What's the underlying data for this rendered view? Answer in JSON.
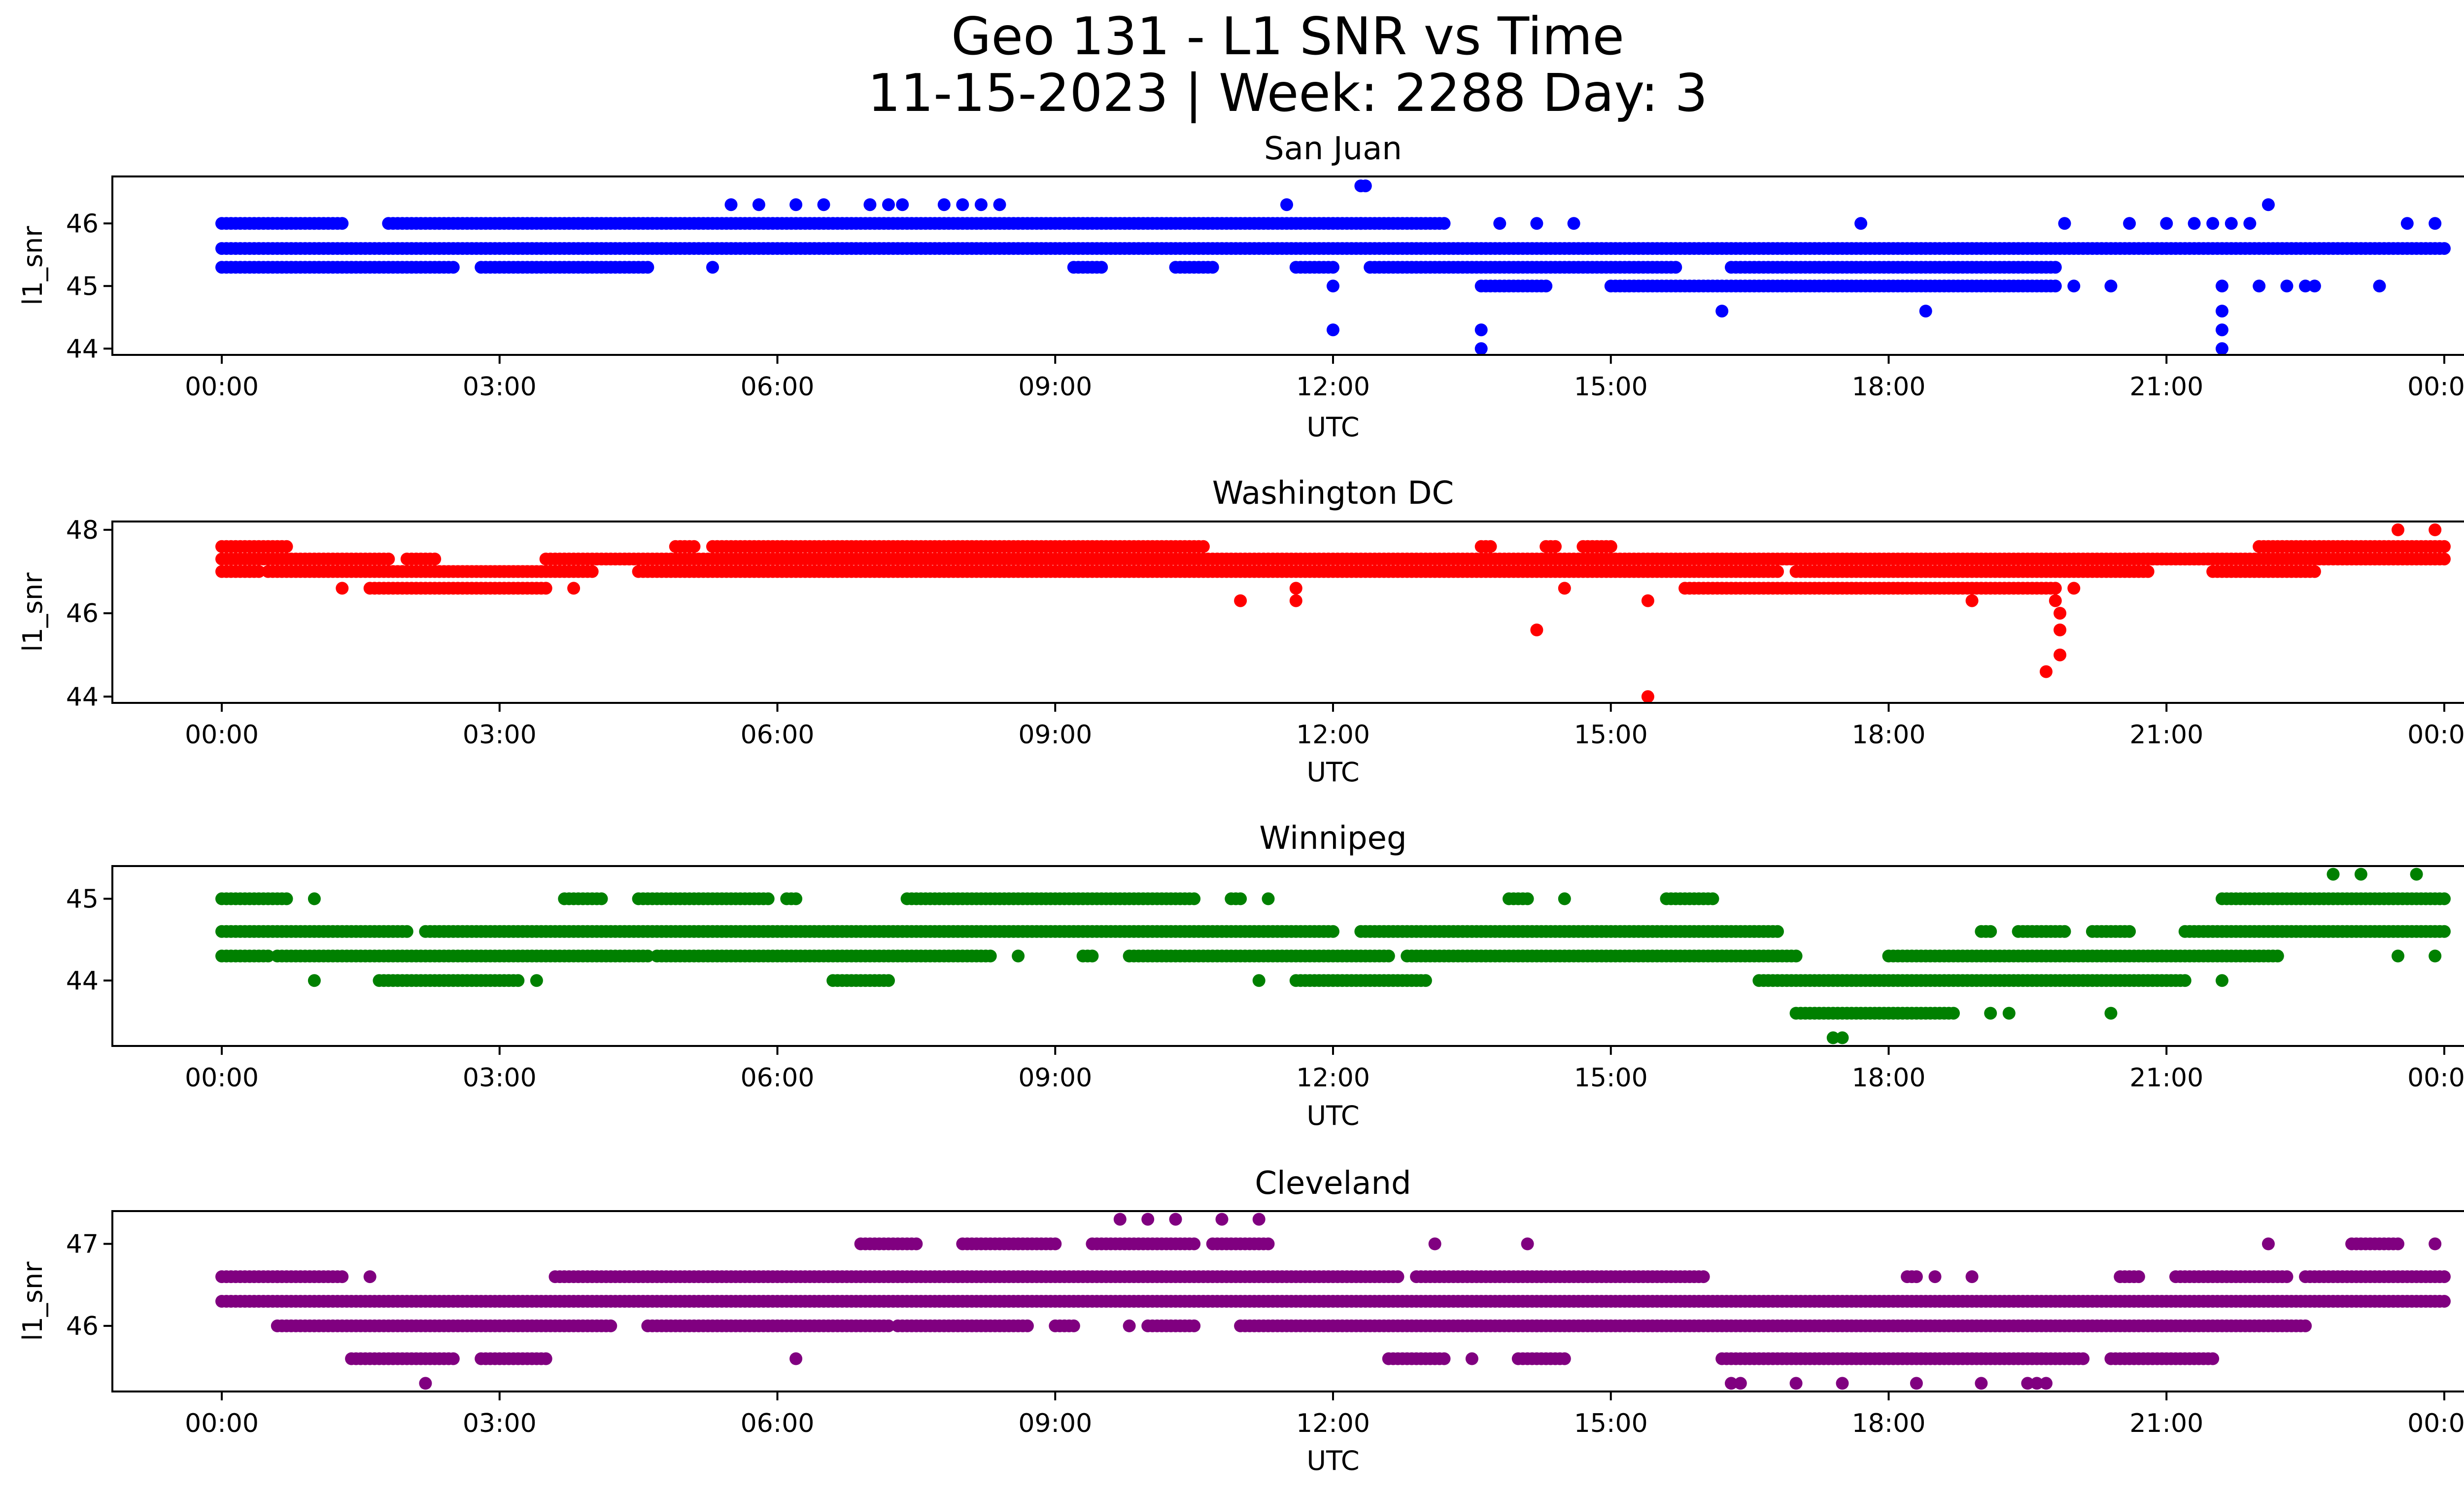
{
  "figure": {
    "title_line1": "Geo 131 - L1 SNR vs Time",
    "title_line2": "11-15-2023 | Week: 2288 Day: 3"
  },
  "chart_data": [
    {
      "type": "scatter",
      "title": "San Juan",
      "xlabel": "UTC",
      "ylabel": "l1_snr",
      "color": "#0000ff",
      "x_ticks": [
        "00:00",
        "03:00",
        "06:00",
        "09:00",
        "12:00",
        "15:00",
        "18:00",
        "21:00",
        "00:00"
      ],
      "x_tick_hours": [
        0,
        3,
        6,
        9,
        12,
        15,
        18,
        21,
        24
      ],
      "y_ticks": [
        44,
        45,
        46
      ],
      "ylim": [
        43.9,
        46.75
      ],
      "bands": [
        {
          "y": 46.0,
          "segments": [
            [
              0.0,
              1.3
            ],
            [
              1.8,
              12.3
            ],
            [
              12.3,
              13.2
            ]
          ]
        },
        {
          "y": 45.6,
          "segments": [
            [
              0.0,
              24.0
            ]
          ]
        },
        {
          "y": 45.3,
          "segments": [
            [
              0.0,
              2.5
            ],
            [
              2.8,
              4.6
            ],
            [
              5.3,
              5.3
            ],
            [
              9.2,
              9.5
            ],
            [
              10.3,
              10.7
            ],
            [
              11.6,
              12.0
            ],
            [
              12.4,
              15.7
            ],
            [
              16.3,
              19.8
            ]
          ]
        },
        {
          "y": 45.0,
          "segments": [
            [
              13.6,
              14.3
            ],
            [
              15.0,
              19.8
            ]
          ]
        }
      ],
      "points": [
        {
          "x": 5.5,
          "y": 46.3
        },
        {
          "x": 5.8,
          "y": 46.3
        },
        {
          "x": 6.2,
          "y": 46.3
        },
        {
          "x": 6.5,
          "y": 46.3
        },
        {
          "x": 7.0,
          "y": 46.3
        },
        {
          "x": 7.2,
          "y": 46.3
        },
        {
          "x": 7.35,
          "y": 46.3
        },
        {
          "x": 7.8,
          "y": 46.3
        },
        {
          "x": 8.0,
          "y": 46.3
        },
        {
          "x": 8.2,
          "y": 46.3
        },
        {
          "x": 8.4,
          "y": 46.3
        },
        {
          "x": 11.5,
          "y": 46.3
        },
        {
          "x": 12.3,
          "y": 46.6
        },
        {
          "x": 12.35,
          "y": 46.6
        },
        {
          "x": 22.1,
          "y": 46.3
        },
        {
          "x": 13.8,
          "y": 46.0
        },
        {
          "x": 14.2,
          "y": 46.0
        },
        {
          "x": 14.6,
          "y": 46.0
        },
        {
          "x": 17.7,
          "y": 46.0
        },
        {
          "x": 19.9,
          "y": 46.0
        },
        {
          "x": 20.6,
          "y": 46.0
        },
        {
          "x": 21.0,
          "y": 46.0
        },
        {
          "x": 21.3,
          "y": 46.0
        },
        {
          "x": 21.5,
          "y": 46.0
        },
        {
          "x": 21.7,
          "y": 46.0
        },
        {
          "x": 21.9,
          "y": 46.0
        },
        {
          "x": 23.6,
          "y": 46.0
        },
        {
          "x": 23.9,
          "y": 46.0
        },
        {
          "x": 12.0,
          "y": 45.0
        },
        {
          "x": 16.2,
          "y": 44.6
        },
        {
          "x": 18.4,
          "y": 44.6
        },
        {
          "x": 21.6,
          "y": 44.6
        },
        {
          "x": 12.0,
          "y": 44.3
        },
        {
          "x": 13.6,
          "y": 44.3
        },
        {
          "x": 21.6,
          "y": 44.3
        },
        {
          "x": 13.6,
          "y": 44.0
        },
        {
          "x": 21.6,
          "y": 44.0
        },
        {
          "x": 20.0,
          "y": 45.0
        },
        {
          "x": 20.4,
          "y": 45.0
        },
        {
          "x": 21.6,
          "y": 45.0
        },
        {
          "x": 22.0,
          "y": 45.0
        },
        {
          "x": 22.3,
          "y": 45.0
        },
        {
          "x": 22.5,
          "y": 45.0
        },
        {
          "x": 22.6,
          "y": 45.0
        },
        {
          "x": 23.3,
          "y": 45.0
        }
      ]
    },
    {
      "type": "scatter",
      "title": "Washington DC",
      "xlabel": "UTC",
      "ylabel": "l1_snr",
      "color": "#ff0000",
      "x_ticks": [
        "00:00",
        "03:00",
        "06:00",
        "09:00",
        "12:00",
        "15:00",
        "18:00",
        "21:00",
        "00:00"
      ],
      "x_tick_hours": [
        0,
        3,
        6,
        9,
        12,
        15,
        18,
        21,
        24
      ],
      "y_ticks": [
        44,
        46,
        48
      ],
      "ylim": [
        43.85,
        48.2
      ],
      "bands": [
        {
          "y": 47.6,
          "segments": [
            [
              0.0,
              0.7
            ],
            [
              4.9,
              5.1
            ],
            [
              5.3,
              10.6
            ],
            [
              13.6,
              13.7
            ],
            [
              14.3,
              14.4
            ],
            [
              14.7,
              15.0
            ],
            [
              22.0,
              24.0
            ]
          ]
        },
        {
          "y": 47.3,
          "segments": [
            [
              0.0,
              1.8
            ],
            [
              2.0,
              2.3
            ],
            [
              3.5,
              24.0
            ]
          ]
        },
        {
          "y": 47.0,
          "segments": [
            [
              0.0,
              0.4
            ],
            [
              0.5,
              4.0
            ],
            [
              4.5,
              16.8
            ],
            [
              17.0,
              20.8
            ],
            [
              21.5,
              22.6
            ]
          ]
        },
        {
          "y": 46.6,
          "segments": [
            [
              1.6,
              3.5
            ],
            [
              15.8,
              19.8
            ]
          ]
        }
      ],
      "points": [
        {
          "x": 1.3,
          "y": 46.6
        },
        {
          "x": 3.8,
          "y": 46.6
        },
        {
          "x": 11.0,
          "y": 46.3
        },
        {
          "x": 11.6,
          "y": 46.3
        },
        {
          "x": 11.6,
          "y": 46.6
        },
        {
          "x": 14.5,
          "y": 46.6
        },
        {
          "x": 15.4,
          "y": 46.3
        },
        {
          "x": 18.9,
          "y": 46.3
        },
        {
          "x": 19.8,
          "y": 46.3
        },
        {
          "x": 19.85,
          "y": 46.0
        },
        {
          "x": 19.85,
          "y": 45.6
        },
        {
          "x": 19.85,
          "y": 45.0
        },
        {
          "x": 19.7,
          "y": 44.6
        },
        {
          "x": 14.2,
          "y": 45.6
        },
        {
          "x": 15.4,
          "y": 44.0
        },
        {
          "x": 23.5,
          "y": 48.0
        },
        {
          "x": 23.9,
          "y": 48.0
        },
        {
          "x": 20.0,
          "y": 46.6
        }
      ]
    },
    {
      "type": "scatter",
      "title": "Winnipeg",
      "xlabel": "UTC",
      "ylabel": "",
      "color": "#008000",
      "x_ticks": [
        "00:00",
        "03:00",
        "06:00",
        "09:00",
        "12:00",
        "15:00",
        "18:00",
        "21:00",
        "00:00"
      ],
      "x_tick_hours": [
        0,
        3,
        6,
        9,
        12,
        15,
        18,
        21,
        24
      ],
      "y_ticks": [
        44,
        45
      ],
      "ylim": [
        43.2,
        45.4
      ],
      "bands": [
        {
          "y": 45.0,
          "segments": [
            [
              0.0,
              0.7
            ],
            [
              3.7,
              4.1
            ],
            [
              4.5,
              5.9
            ],
            [
              6.1,
              6.2
            ],
            [
              7.4,
              10.5
            ],
            [
              10.9,
              11.0
            ],
            [
              13.9,
              14.1
            ],
            [
              15.6,
              16.1
            ],
            [
              21.6,
              24.0
            ]
          ]
        },
        {
          "y": 44.6,
          "segments": [
            [
              0.0,
              2.0
            ],
            [
              2.2,
              12.0
            ],
            [
              12.3,
              16.8
            ],
            [
              19.0,
              19.1
            ],
            [
              19.4,
              19.9
            ],
            [
              20.2,
              20.6
            ],
            [
              21.2,
              24.0
            ]
          ]
        },
        {
          "y": 44.3,
          "segments": [
            [
              0.0,
              0.5
            ],
            [
              0.6,
              4.6
            ],
            [
              4.7,
              8.3
            ],
            [
              9.3,
              9.4
            ],
            [
              9.8,
              12.6
            ],
            [
              12.8,
              17.0
            ],
            [
              18.0,
              22.2
            ]
          ]
        },
        {
          "y": 44.0,
          "segments": [
            [
              1.7,
              3.2
            ],
            [
              6.6,
              7.2
            ],
            [
              11.6,
              13.0
            ],
            [
              16.6,
              21.2
            ]
          ]
        },
        {
          "y": 43.6,
          "segments": [
            [
              17.0,
              18.7
            ]
          ]
        }
      ],
      "points": [
        {
          "x": 1.0,
          "y": 45.0
        },
        {
          "x": 11.3,
          "y": 45.0
        },
        {
          "x": 14.5,
          "y": 45.0
        },
        {
          "x": 22.8,
          "y": 45.3
        },
        {
          "x": 23.1,
          "y": 45.3
        },
        {
          "x": 23.7,
          "y": 45.3
        },
        {
          "x": 1.0,
          "y": 44.0
        },
        {
          "x": 3.4,
          "y": 44.0
        },
        {
          "x": 11.2,
          "y": 44.0
        },
        {
          "x": 21.6,
          "y": 44.0
        },
        {
          "x": 8.6,
          "y": 44.3
        },
        {
          "x": 23.5,
          "y": 44.3
        },
        {
          "x": 23.9,
          "y": 44.3
        },
        {
          "x": 19.1,
          "y": 43.6
        },
        {
          "x": 19.3,
          "y": 43.6
        },
        {
          "x": 20.4,
          "y": 43.6
        },
        {
          "x": 17.4,
          "y": 43.3
        },
        {
          "x": 17.5,
          "y": 43.3
        }
      ]
    },
    {
      "type": "scatter",
      "title": "Cleveland",
      "xlabel": "UTC",
      "ylabel": "l1_snr",
      "color": "#800080",
      "x_ticks": [
        "00:00",
        "03:00",
        "06:00",
        "09:00",
        "12:00",
        "15:00",
        "18:00",
        "21:00",
        "00:00"
      ],
      "x_tick_hours": [
        0,
        3,
        6,
        9,
        12,
        15,
        18,
        21,
        24
      ],
      "y_ticks": [
        46,
        47
      ],
      "ylim": [
        45.2,
        47.4
      ],
      "bands": [
        {
          "y": 47.0,
          "segments": [
            [
              6.9,
              7.5
            ],
            [
              8.0,
              9.0
            ],
            [
              9.4,
              10.5
            ],
            [
              10.7,
              11.3
            ],
            [
              23.0,
              23.5
            ]
          ]
        },
        {
          "y": 46.6,
          "segments": [
            [
              0.0,
              1.3
            ],
            [
              3.6,
              12.7
            ],
            [
              12.9,
              16.0
            ],
            [
              18.2,
              18.3
            ],
            [
              20.5,
              20.7
            ],
            [
              21.1,
              22.3
            ],
            [
              22.5,
              24.0
            ]
          ]
        },
        {
          "y": 46.3,
          "segments": [
            [
              0.0,
              24.0
            ]
          ]
        },
        {
          "y": 46.0,
          "segments": [
            [
              0.6,
              4.2
            ],
            [
              4.6,
              7.2
            ],
            [
              7.3,
              8.7
            ],
            [
              9.0,
              9.2
            ],
            [
              10.0,
              10.5
            ],
            [
              11.0,
              22.5
            ]
          ]
        },
        {
          "y": 45.6,
          "segments": [
            [
              1.4,
              2.5
            ],
            [
              2.8,
              3.5
            ],
            [
              12.6,
              13.2
            ],
            [
              14.0,
              14.5
            ],
            [
              16.2,
              20.1
            ],
            [
              20.4,
              21.5
            ]
          ]
        }
      ],
      "points": [
        {
          "x": 1.6,
          "y": 46.6
        },
        {
          "x": 0.6,
          "y": 46.6
        },
        {
          "x": 9.7,
          "y": 47.3
        },
        {
          "x": 10.0,
          "y": 47.3
        },
        {
          "x": 10.3,
          "y": 47.3
        },
        {
          "x": 10.8,
          "y": 47.3
        },
        {
          "x": 11.2,
          "y": 47.3
        },
        {
          "x": 13.1,
          "y": 47.0
        },
        {
          "x": 14.1,
          "y": 47.0
        },
        {
          "x": 22.1,
          "y": 47.0
        },
        {
          "x": 23.9,
          "y": 47.0
        },
        {
          "x": 18.5,
          "y": 46.6
        },
        {
          "x": 18.9,
          "y": 46.6
        },
        {
          "x": 6.2,
          "y": 45.6
        },
        {
          "x": 13.5,
          "y": 45.6
        },
        {
          "x": 2.2,
          "y": 45.3
        },
        {
          "x": 16.3,
          "y": 45.3
        },
        {
          "x": 16.4,
          "y": 45.3
        },
        {
          "x": 17.0,
          "y": 45.3
        },
        {
          "x": 17.5,
          "y": 45.3
        },
        {
          "x": 18.3,
          "y": 45.3
        },
        {
          "x": 19.0,
          "y": 45.3
        },
        {
          "x": 19.5,
          "y": 45.3
        },
        {
          "x": 19.6,
          "y": 45.3
        },
        {
          "x": 19.7,
          "y": 45.3
        },
        {
          "x": 14.2,
          "y": 46.0
        },
        {
          "x": 9.8,
          "y": 46.0
        }
      ]
    }
  ]
}
